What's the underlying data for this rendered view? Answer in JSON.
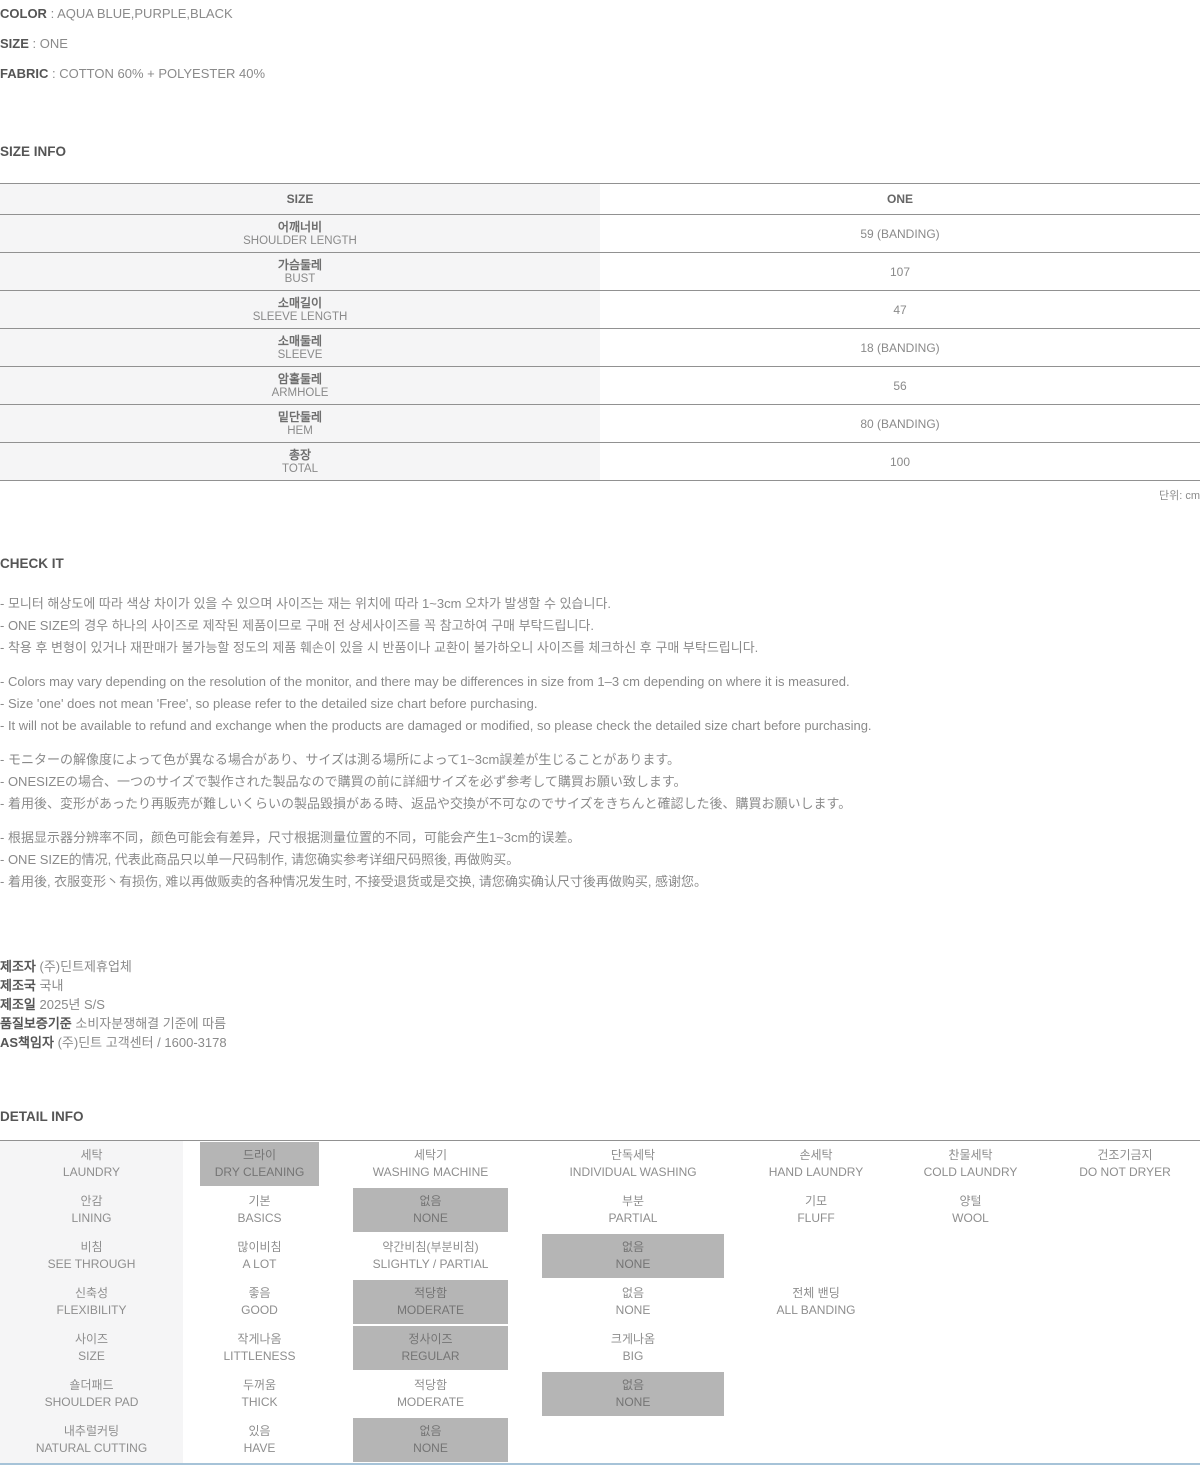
{
  "sep": " : ",
  "attributes": [
    {
      "label": "COLOR",
      "value": "AQUA BLUE,PURPLE,BLACK"
    },
    {
      "label": "SIZE",
      "value": "ONE"
    },
    {
      "label": "FABRIC",
      "value": "COTTON 60% + POLYESTER 40%"
    }
  ],
  "size_info": {
    "heading": "SIZE INFO",
    "table": {
      "header": {
        "label": "SIZE",
        "value": "ONE"
      },
      "rows": [
        {
          "kr": "어깨너비",
          "en": "SHOULDER LENGTH",
          "value": "59 (BANDING)"
        },
        {
          "kr": "가슴둘레",
          "en": "BUST",
          "value": "107"
        },
        {
          "kr": "소매길이",
          "en": "SLEEVE LENGTH",
          "value": "47"
        },
        {
          "kr": "소매둘레",
          "en": "SLEEVE",
          "value": "18 (BANDING)"
        },
        {
          "kr": "암홀둘레",
          "en": "ARMHOLE",
          "value": "56"
        },
        {
          "kr": "밑단둘레",
          "en": "HEM",
          "value": "80 (BANDING)"
        },
        {
          "kr": "총장",
          "en": "TOTAL",
          "value": "100"
        }
      ]
    },
    "unit_note": "단위: cm"
  },
  "check_it": {
    "heading": "CHECK IT",
    "paragraphs": [
      [
        "- 모니터 해상도에 따라 색상 차이가 있을 수 있으며 사이즈는 재는 위치에 따라 1~3cm 오차가 발생할 수 있습니다.",
        "- ONE SIZE의 경우 하나의 사이즈로 제작된 제품이므로 구매 전 상세사이즈를 꼭 참고하여 구매 부탁드립니다.",
        "- 착용 후 변형이 있거나 재판매가 불가능할 정도의 제품 훼손이 있을 시 반품이나 교환이 불가하오니 사이즈를 체크하신 후 구매 부탁드립니다."
      ],
      [
        "- Colors may vary depending on the resolution of the monitor, and there may be differences in size from 1–3 cm depending on where it is measured.",
        "- Size 'one' does not mean 'Free', so please refer to the detailed size chart before purchasing.",
        "- It will not be available to refund and exchange when the products are damaged or modified, so please check the detailed size chart before purchasing."
      ],
      [
        "- モニターの解像度によって色が異なる場合があり、サイズは測る場所によって1~3cm誤差が生じることがあります。",
        "- ONESIZEの場合、一つのサイズで製作された製品なので購買の前に詳細サイズを必ず参考して購買お願い致します。",
        "- 着用後、変形があったり再販売が難しいくらいの製品毀損がある時、返品や交換が不可なのでサイズをきちんと確認した後、購買お願いします。"
      ],
      [
        "- 根据显示器分辨率不同，颜色可能会有差异，尺寸根据测量位置的不同，可能会产生1~3cm的误差。",
        "- ONE SIZE的情况, 代表此商品只以单一尺码制作, 请您确实参考详细尺码照後, 再做购买。",
        "- 着用後, 衣服变形丶有损伤, 难以再做贩卖的各种情况发生时, 不接受退货或是交换, 请您确实确认尺寸後再做购买, 感谢您。"
      ]
    ]
  },
  "manufacturer": {
    "rows": [
      {
        "label": "제조자",
        "value": "(주)딘트제휴업체"
      },
      {
        "label": "제조국",
        "value": "국내"
      },
      {
        "label": "제조일",
        "value": "2025년 S/S"
      },
      {
        "label": "품질보증기준",
        "value": "소비자분쟁해결 기준에 따름"
      },
      {
        "label": "AS책임자",
        "value": "(주)딘트 고객센터 / 1600-3178"
      }
    ]
  },
  "detail_info": {
    "heading": "DETAIL INFO",
    "rows": [
      {
        "category": {
          "kr": "세탁",
          "en": "LAUNDRY"
        },
        "options": [
          {
            "kr": "드라이",
            "en": "DRY CLEANING",
            "selected": true
          },
          {
            "kr": "세탁기",
            "en": "WASHING MACHINE",
            "selected": false
          },
          {
            "kr": "단독세탁",
            "en": "INDIVIDUAL WASHING",
            "selected": false
          },
          {
            "kr": "손세탁",
            "en": "HAND LAUNDRY",
            "selected": false
          },
          {
            "kr": "찬물세탁",
            "en": "COLD LAUNDRY",
            "selected": false
          },
          {
            "kr": "건조기금지",
            "en": "DO NOT DRYER",
            "selected": false
          }
        ]
      },
      {
        "category": {
          "kr": "안감",
          "en": "LINING"
        },
        "options": [
          {
            "kr": "기본",
            "en": "BASICS",
            "selected": false
          },
          {
            "kr": "없음",
            "en": "NONE",
            "selected": true
          },
          {
            "kr": "부분",
            "en": "PARTIAL",
            "selected": false
          },
          {
            "kr": "기모",
            "en": "FLUFF",
            "selected": false
          },
          {
            "kr": "양털",
            "en": "WOOL",
            "selected": false
          }
        ]
      },
      {
        "category": {
          "kr": "비침",
          "en": "SEE THROUGH"
        },
        "options": [
          {
            "kr": "많이비침",
            "en": "A LOT",
            "selected": false
          },
          {
            "kr": "약간비침(부분비침)",
            "en": "SLIGHTLY / PARTIAL",
            "selected": false
          },
          {
            "kr": "없음",
            "en": "NONE",
            "selected": true
          }
        ]
      },
      {
        "category": {
          "kr": "신축성",
          "en": "FLEXIBILITY"
        },
        "options": [
          {
            "kr": "좋음",
            "en": "GOOD",
            "selected": false
          },
          {
            "kr": "적당함",
            "en": "MODERATE",
            "selected": true
          },
          {
            "kr": "없음",
            "en": "NONE",
            "selected": false
          },
          {
            "kr": "전체 밴딩",
            "en": "ALL BANDING",
            "selected": false
          }
        ]
      },
      {
        "category": {
          "kr": "사이즈",
          "en": "SIZE"
        },
        "options": [
          {
            "kr": "작게나옴",
            "en": "LITTLENESS",
            "selected": false
          },
          {
            "kr": "정사이즈",
            "en": "REGULAR",
            "selected": true
          },
          {
            "kr": "크게나옴",
            "en": "BIG",
            "selected": false
          }
        ]
      },
      {
        "category": {
          "kr": "숄더패드",
          "en": "SHOULDER PAD"
        },
        "options": [
          {
            "kr": "두꺼움",
            "en": "THICK",
            "selected": false
          },
          {
            "kr": "적당함",
            "en": "MODERATE",
            "selected": false
          },
          {
            "kr": "없음",
            "en": "NONE",
            "selected": true
          }
        ]
      },
      {
        "category": {
          "kr": "내추럴커팅",
          "en": "NATURAL CUTTING"
        },
        "options": [
          {
            "kr": "있음",
            "en": "HAVE",
            "selected": false
          },
          {
            "kr": "없음",
            "en": "NONE",
            "selected": true
          }
        ]
      }
    ]
  },
  "colors": {
    "text": "#8a8a8a",
    "text_dark": "#555555",
    "table_line": "#919191",
    "label_column_bg": "#f5f5f6",
    "highlight_bg": "#b5b5b5",
    "bottom_line": "#a6c3d8"
  }
}
